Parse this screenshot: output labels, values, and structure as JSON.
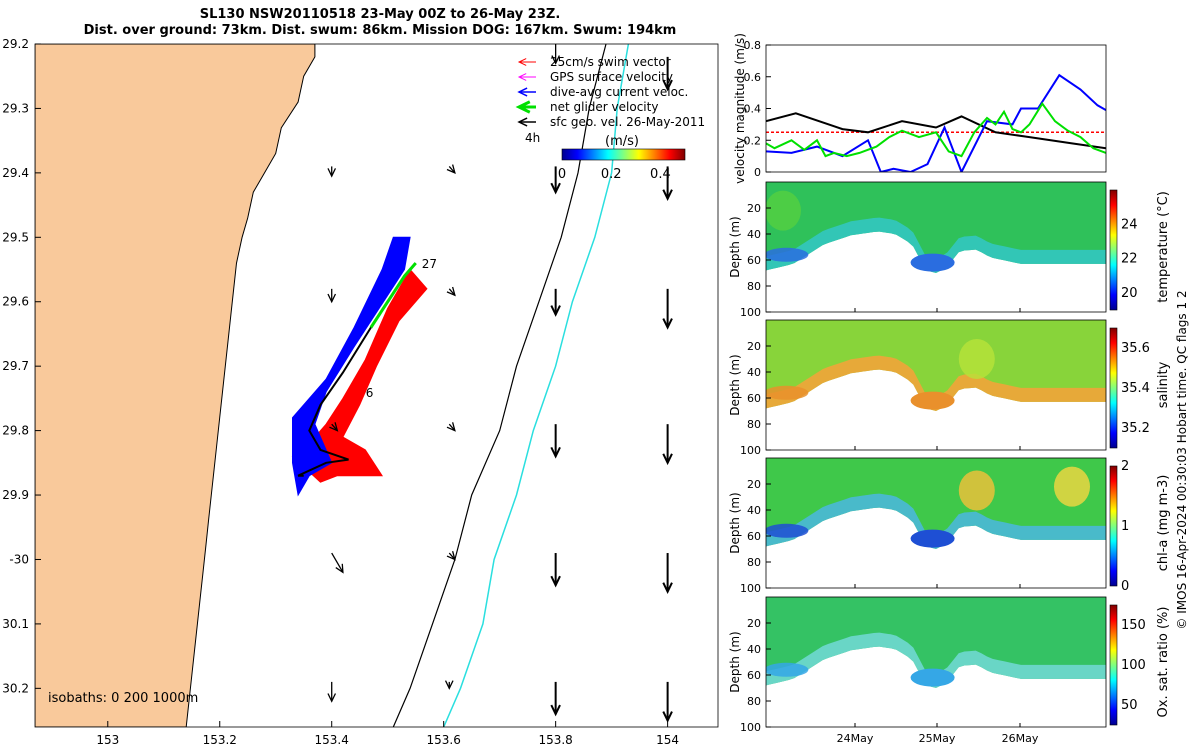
{
  "title": {
    "line1": "SL130 NSW20110518 23-May 00Z to 26-May 23Z.",
    "line2": "Dist. over ground: 73km. Dist. swum: 86km. Mission DOG: 167km. Swum: 194km"
  },
  "footer": "© IMOS 16-Apr-2024 00:30:03 Hobart time. QC flags 1  2",
  "colors": {
    "land": "#f9c99b",
    "swim": "#ff0000",
    "gps": "#ff00ff",
    "dive": "#0000ff",
    "net": "#00e000",
    "geo": "#000000",
    "iso200": "#000000",
    "iso1000": "#2adfdf"
  },
  "chart_data": [
    {
      "type": "map",
      "id": "track-map",
      "xlim": [
        152.87,
        154.09
      ],
      "ylim": [
        -30.26,
        -29.2
      ],
      "xticks": [
        153,
        153.2,
        153.4,
        153.6,
        153.8,
        154
      ],
      "xtick_labels": [
        "153",
        "153.2",
        "153.4",
        "153.6",
        "153.8",
        "154"
      ],
      "yticks": [
        -29.2,
        -29.3,
        -29.4,
        -29.5,
        -29.6,
        -29.7,
        -29.8,
        -29.9,
        -30,
        -30.1,
        -30.2
      ],
      "ytick_labels": [
        "29.2",
        "29.3",
        "29.4",
        "29.5",
        "29.6",
        "29.7",
        "29.8",
        "29.9",
        "-30",
        "30.1",
        "30.2"
      ],
      "legend": {
        "placement": "top-right",
        "entries": [
          "25cm/s swim vector",
          "GPS surface velocity",
          "dive-avg current veloc.",
          "net glider velocity",
          "sfc geo. vel. 26-May-2011"
        ]
      },
      "time_label": "4h",
      "colorbar": {
        "label": "(m/s)",
        "ticks": [
          "0",
          "0.2",
          "0.4"
        ],
        "range": [
          0,
          0.5
        ]
      },
      "isobath_label": "isobaths: 0   200  1000m",
      "day_labels": [
        {
          "text": "27",
          "lon": 153.55,
          "lat": -29.54
        },
        {
          "text": "6",
          "lon": 153.45,
          "lat": -29.74
        }
      ],
      "coastline": [
        [
          152.87,
          -29.2
        ],
        [
          153.37,
          -29.2
        ],
        [
          153.37,
          -29.22
        ],
        [
          153.35,
          -29.25
        ],
        [
          153.34,
          -29.29
        ],
        [
          153.31,
          -29.33
        ],
        [
          153.3,
          -29.37
        ],
        [
          153.28,
          -29.4
        ],
        [
          153.26,
          -29.43
        ],
        [
          153.25,
          -29.47
        ],
        [
          153.24,
          -29.5
        ],
        [
          153.23,
          -29.54
        ],
        [
          153.225,
          -29.58
        ],
        [
          153.22,
          -29.62
        ],
        [
          153.215,
          -29.66
        ],
        [
          153.21,
          -29.7
        ],
        [
          153.205,
          -29.74
        ],
        [
          153.2,
          -29.78
        ],
        [
          153.195,
          -29.82
        ],
        [
          153.19,
          -29.86
        ],
        [
          153.185,
          -29.9
        ],
        [
          153.18,
          -29.94
        ],
        [
          153.175,
          -29.98
        ],
        [
          153.17,
          -30.02
        ],
        [
          153.165,
          -30.06
        ],
        [
          153.16,
          -30.1
        ],
        [
          153.155,
          -30.14
        ],
        [
          153.15,
          -30.18
        ],
        [
          153.145,
          -30.22
        ],
        [
          153.14,
          -30.26
        ],
        [
          152.87,
          -30.26
        ]
      ],
      "track_net": [
        [
          153.55,
          -29.54
        ],
        [
          153.53,
          -29.56
        ],
        [
          153.47,
          -29.64
        ],
        [
          153.42,
          -29.71
        ],
        [
          153.38,
          -29.76
        ],
        [
          153.36,
          -29.8
        ],
        [
          153.38,
          -29.83
        ],
        [
          153.43,
          -29.845
        ],
        [
          153.39,
          -29.85
        ],
        [
          153.34,
          -29.87
        ],
        [
          153.35,
          -29.87
        ]
      ],
      "dive_area": [
        [
          153.34,
          -29.9
        ],
        [
          153.33,
          -29.85
        ],
        [
          153.33,
          -29.78
        ],
        [
          153.39,
          -29.72
        ],
        [
          153.44,
          -29.64
        ],
        [
          153.49,
          -29.55
        ],
        [
          153.51,
          -29.5
        ],
        [
          153.54,
          -29.5
        ],
        [
          153.53,
          -29.55
        ],
        [
          153.44,
          -29.67
        ],
        [
          153.39,
          -29.74
        ],
        [
          153.37,
          -29.79
        ],
        [
          153.4,
          -29.85
        ],
        [
          153.36,
          -29.87
        ]
      ],
      "swim_area": [
        [
          153.38,
          -29.88
        ],
        [
          153.33,
          -29.84
        ],
        [
          153.36,
          -29.82
        ],
        [
          153.39,
          -29.79
        ],
        [
          153.42,
          -29.75
        ],
        [
          153.46,
          -29.69
        ],
        [
          153.5,
          -29.61
        ],
        [
          153.54,
          -29.55
        ],
        [
          153.57,
          -29.58
        ],
        [
          153.52,
          -29.63
        ],
        [
          153.48,
          -29.7
        ],
        [
          153.45,
          -29.76
        ],
        [
          153.42,
          -29.81
        ],
        [
          153.46,
          -29.83
        ],
        [
          153.49,
          -29.87
        ],
        [
          153.41,
          -29.87
        ]
      ],
      "isobath_200": [
        [
          153.89,
          -29.2
        ],
        [
          153.86,
          -29.3
        ],
        [
          153.84,
          -29.4
        ],
        [
          153.81,
          -29.5
        ],
        [
          153.77,
          -29.6
        ],
        [
          153.73,
          -29.7
        ],
        [
          153.7,
          -29.8
        ],
        [
          153.65,
          -29.9
        ],
        [
          153.62,
          -30
        ],
        [
          153.58,
          -30.1
        ],
        [
          153.54,
          -30.2
        ],
        [
          153.51,
          -30.26
        ]
      ],
      "isobath_1000": [
        [
          153.93,
          -29.2
        ],
        [
          153.91,
          -29.3
        ],
        [
          153.9,
          -29.4
        ],
        [
          153.87,
          -29.5
        ],
        [
          153.83,
          -29.6
        ],
        [
          153.8,
          -29.7
        ],
        [
          153.76,
          -29.8
        ],
        [
          153.73,
          -29.9
        ],
        [
          153.69,
          -30
        ],
        [
          153.67,
          -30.1
        ],
        [
          153.63,
          -30.2
        ],
        [
          153.6,
          -30.26
        ]
      ],
      "sfc_vectors": [
        [
          153.4,
          -29.39,
          0,
          -0.015
        ],
        [
          153.61,
          -29.39,
          0.01,
          -0.01
        ],
        [
          153.8,
          -29.39,
          0,
          -0.04
        ],
        [
          154,
          -29.39,
          0,
          -0.05
        ],
        [
          153.4,
          -29.58,
          0,
          -0.02
        ],
        [
          153.61,
          -29.58,
          0.01,
          -0.01
        ],
        [
          153.8,
          -29.58,
          0,
          -0.04
        ],
        [
          154,
          -29.58,
          0,
          -0.06
        ],
        [
          153.4,
          -29.79,
          0.01,
          -0.01
        ],
        [
          153.61,
          -29.79,
          0.01,
          -0.01
        ],
        [
          153.8,
          -29.79,
          0,
          -0.05
        ],
        [
          154,
          -29.79,
          0,
          -0.06
        ],
        [
          153.4,
          -29.99,
          0.02,
          -0.03
        ],
        [
          153.61,
          -29.99,
          0.01,
          -0.01
        ],
        [
          153.8,
          -29.99,
          0,
          -0.05
        ],
        [
          154,
          -29.99,
          0,
          -0.06
        ],
        [
          153.4,
          -30.19,
          0,
          -0.03
        ],
        [
          153.61,
          -30.19,
          0,
          -0.01
        ],
        [
          153.8,
          -30.19,
          0,
          -0.05
        ],
        [
          154,
          -30.19,
          0,
          -0.06
        ],
        [
          153.8,
          -29.2,
          0,
          -0.03
        ],
        [
          154,
          -29.22,
          0,
          -0.05
        ]
      ]
    },
    {
      "type": "line",
      "id": "velocity-magnitude",
      "ylabel": "velocity magnitude (m/s)",
      "xlim": [
        23,
        27
      ],
      "ylim": [
        0,
        0.8
      ],
      "yticks": [
        0,
        0.2,
        0.4,
        0.6,
        0.8
      ],
      "ytick_labels": [
        "0",
        "0.2",
        "0.4",
        "0.6",
        "0.8"
      ],
      "series": [
        {
          "color": "#ff0000",
          "values": [
            [
              23,
              0.25
            ],
            [
              27,
              0.25
            ]
          ]
        },
        {
          "color": "#000000",
          "values": [
            [
              23,
              0.32
            ],
            [
              23.35,
              0.37
            ],
            [
              23.9,
              0.27
            ],
            [
              24.2,
              0.25
            ],
            [
              24.6,
              0.32
            ],
            [
              25.0,
              0.28
            ],
            [
              25.3,
              0.35
            ],
            [
              25.7,
              0.25
            ],
            [
              26.1,
              0.22
            ],
            [
              26.6,
              0.18
            ],
            [
              27,
              0.15
            ]
          ]
        },
        {
          "color": "#0000ff",
          "values": [
            [
              23,
              0.13
            ],
            [
              23.3,
              0.12
            ],
            [
              23.6,
              0.16
            ],
            [
              23.9,
              0.1
            ],
            [
              24.2,
              0.2
            ],
            [
              24.35,
              0.0
            ],
            [
              24.5,
              0.02
            ],
            [
              24.7,
              0.0
            ],
            [
              24.9,
              0.05
            ],
            [
              25.1,
              0.28
            ],
            [
              25.3,
              0.0
            ],
            [
              25.6,
              0.32
            ],
            [
              25.9,
              0.3
            ],
            [
              26.0,
              0.4
            ],
            [
              26.2,
              0.4
            ],
            [
              26.45,
              0.61
            ],
            [
              26.7,
              0.52
            ],
            [
              26.9,
              0.42
            ],
            [
              27,
              0.39
            ]
          ]
        },
        {
          "color": "#00e000",
          "values": [
            [
              23,
              0.18
            ],
            [
              23.1,
              0.15
            ],
            [
              23.3,
              0.2
            ],
            [
              23.45,
              0.14
            ],
            [
              23.6,
              0.2
            ],
            [
              23.7,
              0.1
            ],
            [
              23.8,
              0.12
            ],
            [
              23.95,
              0.1
            ],
            [
              24.1,
              0.12
            ],
            [
              24.3,
              0.16
            ],
            [
              24.45,
              0.22
            ],
            [
              24.6,
              0.26
            ],
            [
              24.8,
              0.22
            ],
            [
              25.0,
              0.25
            ],
            [
              25.15,
              0.13
            ],
            [
              25.3,
              0.1
            ],
            [
              25.45,
              0.25
            ],
            [
              25.6,
              0.34
            ],
            [
              25.7,
              0.3
            ],
            [
              25.8,
              0.38
            ],
            [
              25.9,
              0.27
            ],
            [
              26.0,
              0.25
            ],
            [
              26.1,
              0.3
            ],
            [
              26.25,
              0.43
            ],
            [
              26.4,
              0.32
            ],
            [
              26.55,
              0.26
            ],
            [
              26.7,
              0.22
            ],
            [
              26.85,
              0.15
            ],
            [
              27,
              0.12
            ]
          ]
        }
      ]
    },
    {
      "type": "heatmap",
      "id": "temperature",
      "ylabel": "Depth (m)",
      "colorbar_label": "temperature (°C)",
      "ylim": [
        0,
        100
      ],
      "yticks": [
        "20",
        "40",
        "60",
        "80",
        "100"
      ],
      "cticks": [
        "20",
        "22",
        "24"
      ],
      "crange": [
        19,
        26
      ]
    },
    {
      "type": "heatmap",
      "id": "salinity",
      "ylabel": "Depth (m)",
      "colorbar_label": "salinity",
      "ylim": [
        0,
        100
      ],
      "yticks": [
        "20",
        "40",
        "60",
        "80",
        "100"
      ],
      "cticks": [
        "35.2",
        "35.4",
        "35.6"
      ],
      "crange": [
        35.1,
        35.7
      ]
    },
    {
      "type": "heatmap",
      "id": "chl-a",
      "ylabel": "Depth (m)",
      "colorbar_label": "chl-a (mg m-3)",
      "ylim": [
        0,
        100
      ],
      "yticks": [
        "20",
        "40",
        "60",
        "80",
        "100"
      ],
      "cticks": [
        "0",
        "1",
        "2"
      ],
      "crange": [
        0,
        2
      ]
    },
    {
      "type": "heatmap",
      "id": "oxygen",
      "ylabel": "Depth (m)",
      "colorbar_label": "Ox. sat. ratio (%)",
      "ylim": [
        0,
        100
      ],
      "yticks": [
        "20",
        "40",
        "60",
        "80",
        "100"
      ],
      "cticks": [
        "50",
        "100",
        "150"
      ],
      "crange": [
        25,
        175
      ],
      "xtick_labels": [
        "24May",
        "25May",
        "26May"
      ]
    }
  ]
}
